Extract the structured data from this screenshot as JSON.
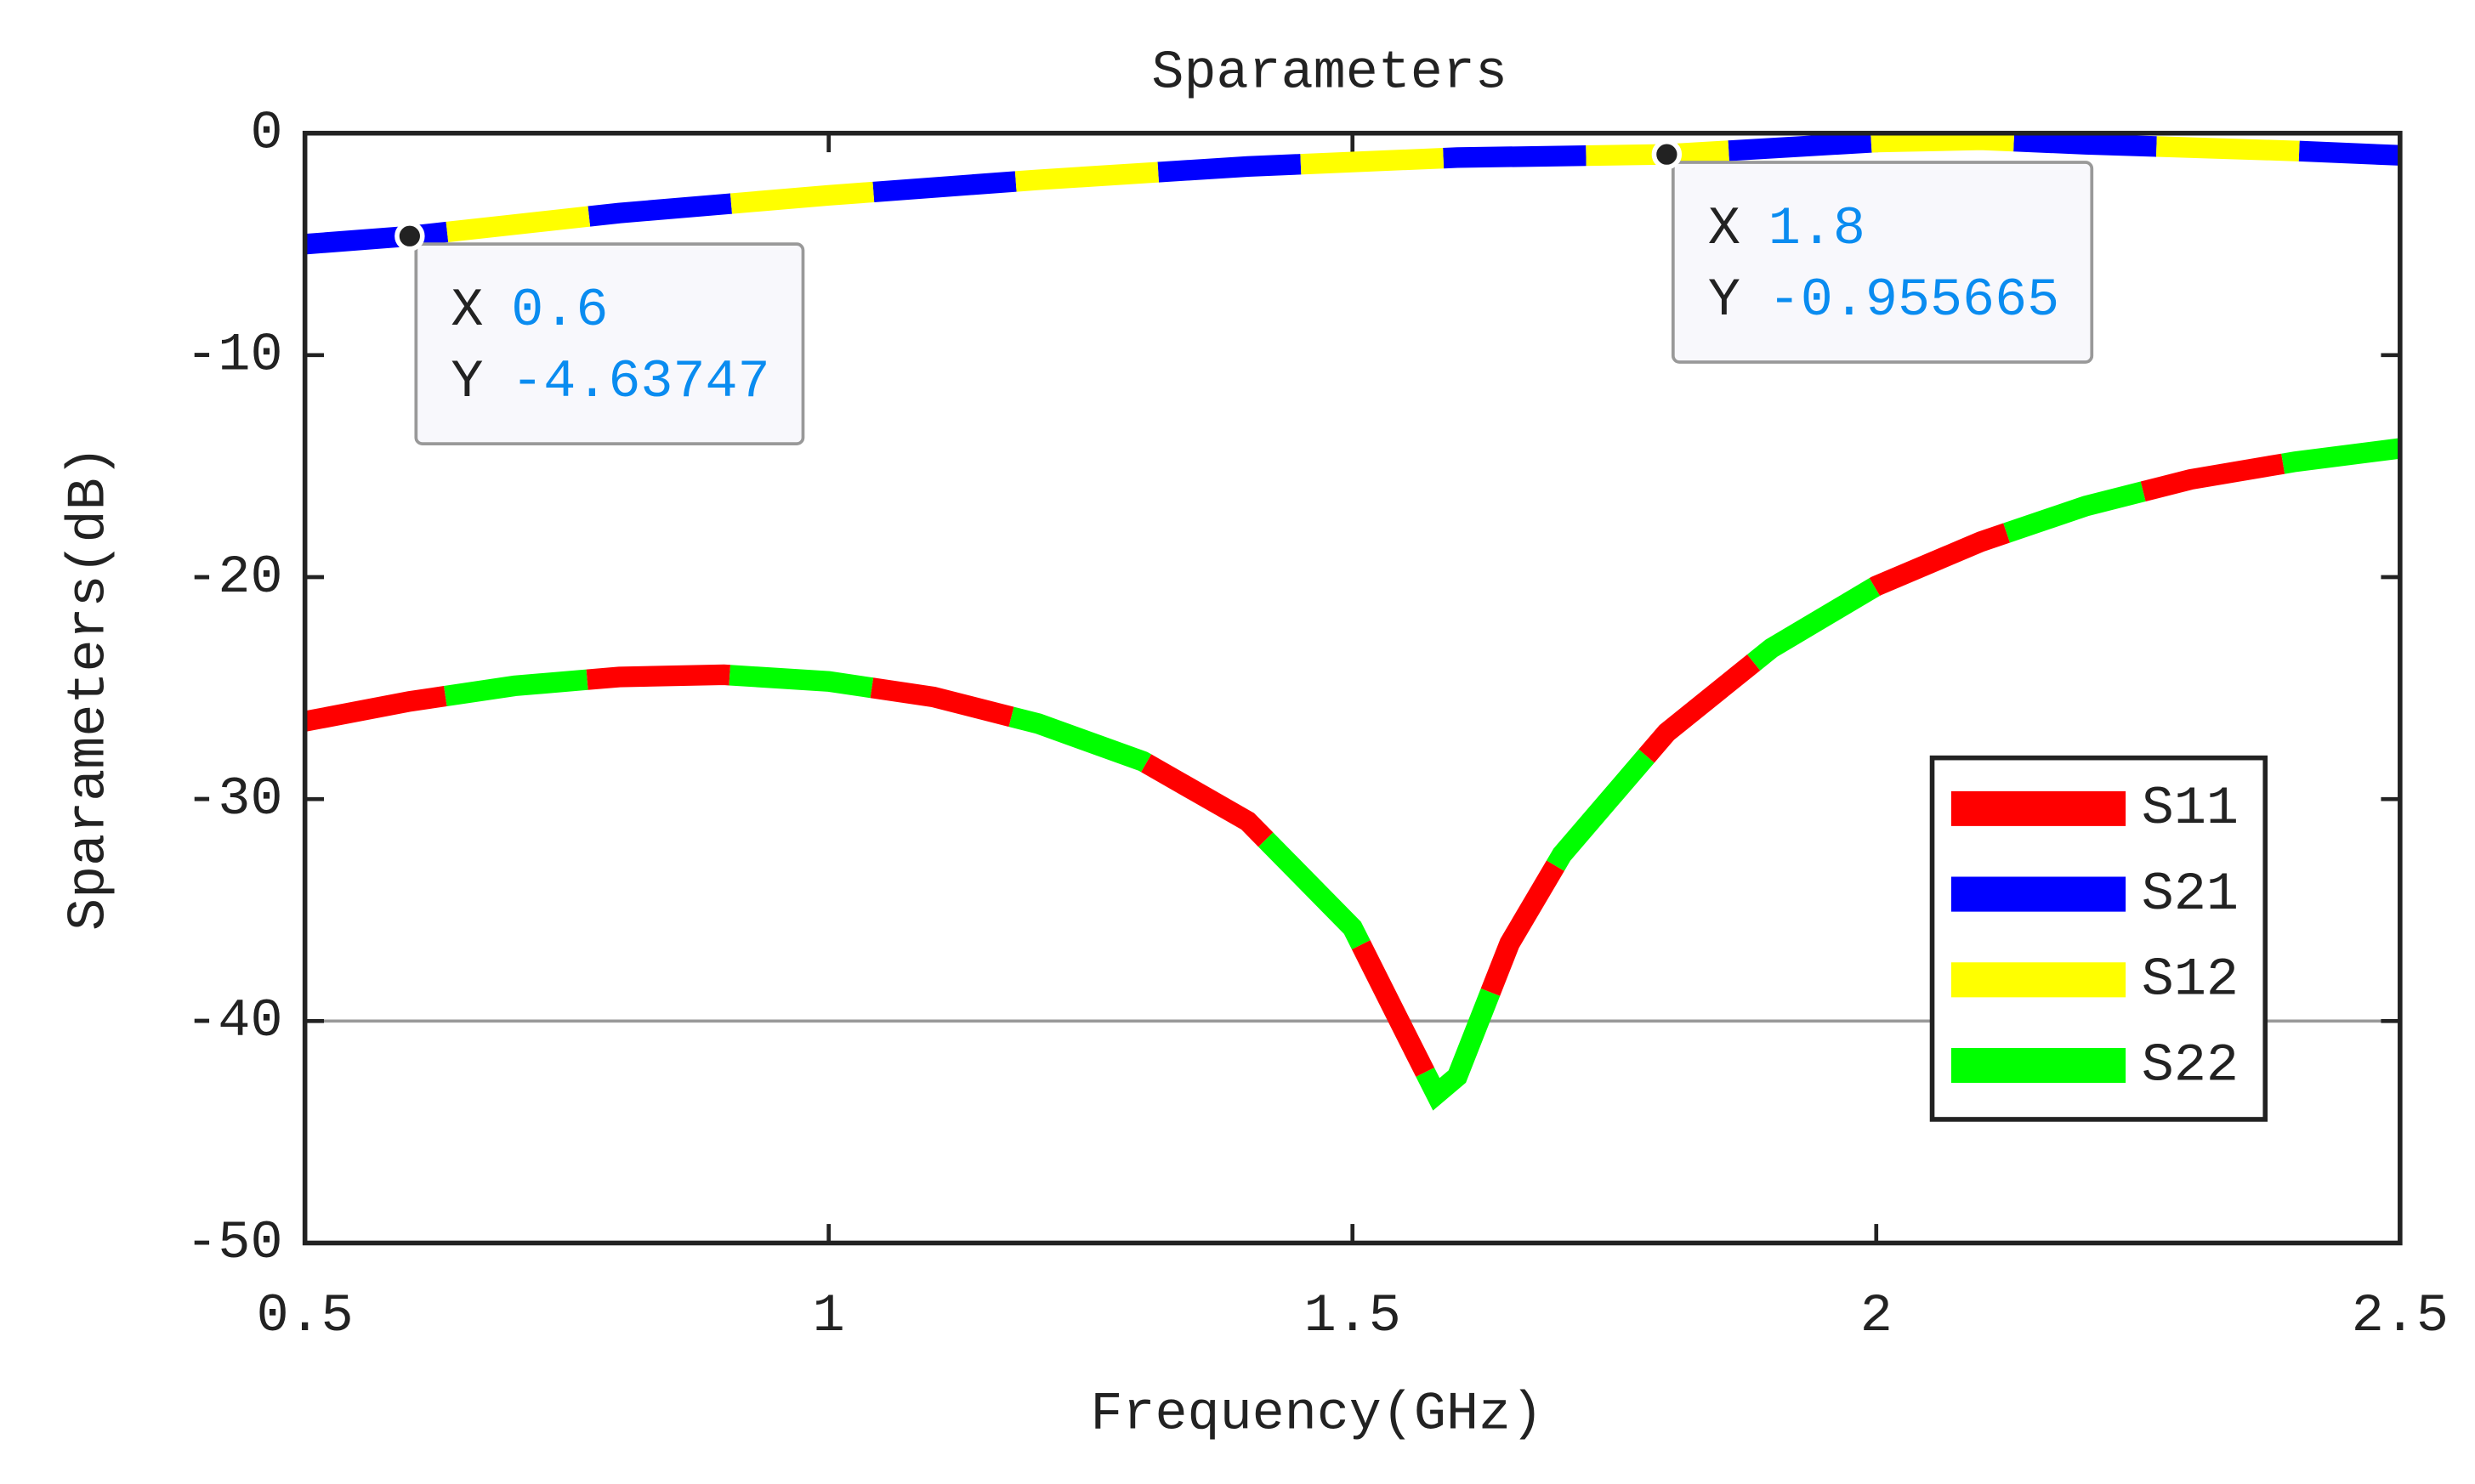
{
  "chart_data": {
    "type": "line",
    "title": "Sparameters",
    "xlabel": "Frequency(GHz)",
    "ylabel": "Sparameters(dB)",
    "xlim": [
      0.5,
      2.5
    ],
    "ylim": [
      -50,
      0
    ],
    "xticks": [
      0.5,
      1,
      1.5,
      2,
      2.5
    ],
    "yticks": [
      -50,
      -40,
      -30,
      -20,
      -10,
      0
    ],
    "hline": -40,
    "legend": "lower right",
    "series": [
      {
        "name": "S11",
        "color": "#ff0000",
        "x": [
          0.5,
          0.6,
          0.7,
          0.8,
          0.9,
          1.0,
          1.1,
          1.2,
          1.3,
          1.4,
          1.5,
          1.55,
          1.58,
          1.6,
          1.65,
          1.7,
          1.8,
          1.9,
          2.0,
          2.1,
          2.2,
          2.3,
          2.4,
          2.5
        ],
        "values": [
          -26.5,
          -25.6,
          -24.9,
          -24.5,
          -24.4,
          -24.7,
          -25.4,
          -26.6,
          -28.3,
          -31.0,
          -35.8,
          -40.5,
          -43.3,
          -42.5,
          -36.5,
          -32.5,
          -27.0,
          -23.2,
          -20.4,
          -18.4,
          -16.8,
          -15.6,
          -14.8,
          -14.2
        ]
      },
      {
        "name": "S21",
        "color": "#0000ff",
        "x": [
          0.5,
          0.6,
          0.8,
          1.0,
          1.2,
          1.4,
          1.6,
          1.8,
          2.0,
          2.1,
          2.2,
          2.4,
          2.5
        ],
        "values": [
          -5.0,
          -4.63747,
          -3.6,
          -2.8,
          -2.1,
          -1.5,
          -1.1,
          -0.955665,
          -0.4,
          -0.3,
          -0.5,
          -0.8,
          -1.0
        ]
      },
      {
        "name": "S12",
        "color": "#ffff00",
        "x": [
          0.5,
          0.6,
          0.8,
          1.0,
          1.2,
          1.4,
          1.6,
          1.8,
          2.0,
          2.1,
          2.2,
          2.4,
          2.5
        ],
        "values": [
          -5.0,
          -4.63747,
          -3.6,
          -2.8,
          -2.1,
          -1.5,
          -1.1,
          -0.955665,
          -0.4,
          -0.3,
          -0.5,
          -0.8,
          -1.0
        ]
      },
      {
        "name": "S22",
        "color": "#00ff00",
        "x": [
          0.5,
          0.6,
          0.7,
          0.8,
          0.9,
          1.0,
          1.1,
          1.2,
          1.3,
          1.4,
          1.5,
          1.55,
          1.58,
          1.6,
          1.65,
          1.7,
          1.8,
          1.9,
          2.0,
          2.1,
          2.2,
          2.3,
          2.4,
          2.5
        ],
        "values": [
          -26.5,
          -25.6,
          -24.9,
          -24.5,
          -24.4,
          -24.7,
          -25.4,
          -26.6,
          -28.3,
          -31.0,
          -35.8,
          -40.5,
          -43.3,
          -42.5,
          -36.5,
          -32.5,
          -27.0,
          -23.2,
          -20.4,
          -18.4,
          -16.8,
          -15.6,
          -14.8,
          -14.2
        ]
      }
    ],
    "datatip_labels": [
      "X",
      "Y"
    ],
    "datatips": [
      {
        "x": 0.6,
        "y": -4.63747
      },
      {
        "x": 1.8,
        "y": -0.955665
      }
    ]
  }
}
